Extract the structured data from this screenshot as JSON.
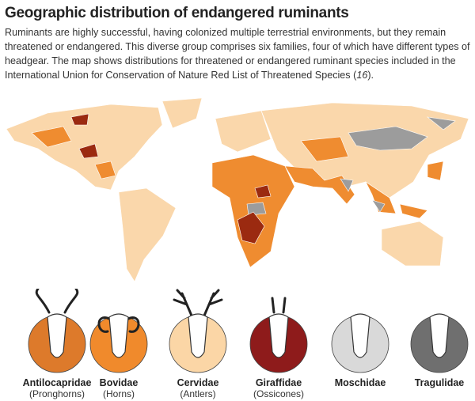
{
  "header": {
    "title": "Geographic distribution of endangered ruminants",
    "description": [
      "Ruminants are highly successful, having colonized multiple terrestrial environments, but they remain threatened or endangered. This diverse group comprises six families, four of which have different types of headgear. The map shows distributions for threatened or endangered ruminant species included in the International Union for Conservation of Nature Red List of Threatened Species (",
      "16",
      ")."
    ]
  },
  "families": [
    {
      "name": "Antilocapridae",
      "headgear": "(Pronghorns)",
      "color": "#dd7a2b"
    },
    {
      "name": "Bovidae",
      "headgear": "(Horns)",
      "color": "#f08a2c"
    },
    {
      "name": "Cervidae",
      "headgear": "(Antlers)",
      "color": "#fbd6a6"
    },
    {
      "name": "Giraffidae",
      "headgear": "(Ossicones)",
      "color": "#8e1b1b"
    },
    {
      "name": "Moschidae",
      "color": "#d9d9d9"
    },
    {
      "name": "Tragulidae",
      "color": "#6f6f6f"
    }
  ]
}
